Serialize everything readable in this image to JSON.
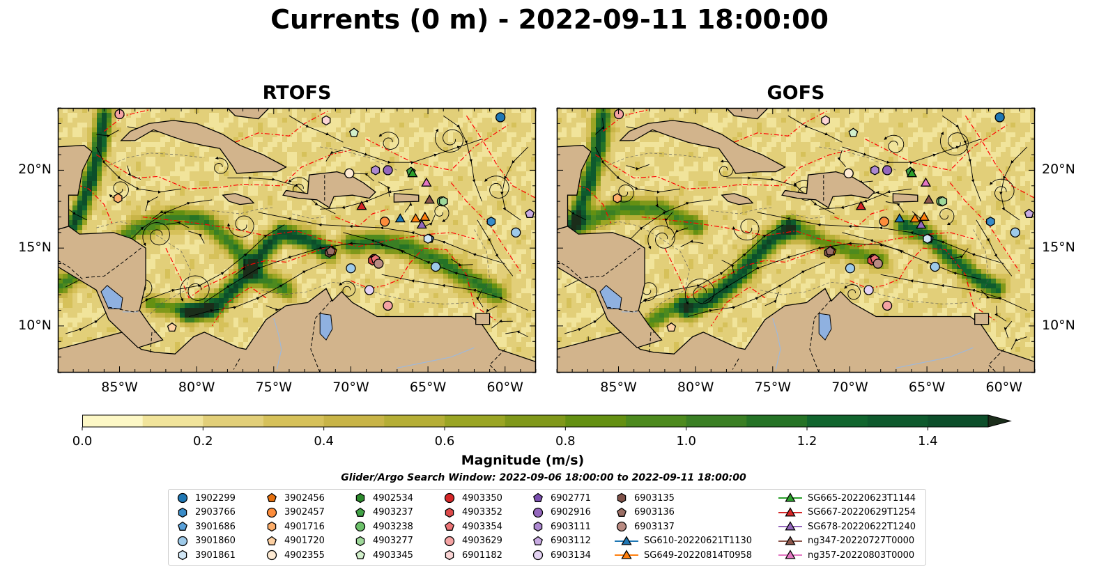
{
  "title": "Currents (0 m) - 2022-09-11 18:00:00",
  "panels": [
    {
      "id": "rtofs",
      "title": "RTOFS"
    },
    {
      "id": "gofs",
      "title": "GOFS"
    }
  ],
  "map": {
    "lon_range": [
      -89,
      -58
    ],
    "lat_range": [
      7,
      24
    ],
    "lon_ticks": [
      "85°W",
      "80°W",
      "75°W",
      "70°W",
      "65°W",
      "60°W"
    ],
    "lon_values": [
      -85,
      -80,
      -75,
      -70,
      -65,
      -60
    ],
    "lat_ticks": [
      "10°N",
      "15°N",
      "20°N"
    ],
    "lat_values": [
      10,
      15,
      20
    ]
  },
  "colorbar": {
    "label": "Magnitude (m/s)",
    "min": 0.0,
    "max": 1.5,
    "step": 0.1,
    "tick_labels": [
      "0.0",
      "0.2",
      "0.4",
      "0.6",
      "0.8",
      "1.0",
      "1.2",
      "1.4"
    ],
    "tick_values": [
      0,
      0.2,
      0.4,
      0.6,
      0.8,
      1.0,
      1.2,
      1.4
    ],
    "colors": [
      "#fdf8c6",
      "#f1e49b",
      "#e2cf79",
      "#d6c15a",
      "#c8b447",
      "#b5ae36",
      "#9aa524",
      "#80981a",
      "#649012",
      "#4d8a1e",
      "#3a7f24",
      "#257326",
      "#11652e",
      "#0e5a2d",
      "#0c4e2a",
      "#0e4325",
      "#143820",
      "#1b2d1a"
    ],
    "extend": "max"
  },
  "search_window": "Glider/Argo Search Window: 2022-09-06 18:00:00 to 2022-09-11 18:00:00",
  "legend": {
    "columns": [
      [
        {
          "label": "1902299",
          "marker": "circle",
          "color": "#1f77b4"
        },
        {
          "label": "2903766",
          "marker": "hexagon",
          "color": "#3a8cc8"
        },
        {
          "label": "3901686",
          "marker": "pentagon",
          "color": "#5aa1da"
        },
        {
          "label": "3901860",
          "marker": "circle",
          "color": "#9ecae9"
        },
        {
          "label": "3901861",
          "marker": "hexagon",
          "color": "#d0e6f5"
        }
      ],
      [
        {
          "label": "3902456",
          "marker": "pentagon",
          "color": "#e6700f"
        },
        {
          "label": "3902457",
          "marker": "circle",
          "color": "#fd8d3c"
        },
        {
          "label": "4901716",
          "marker": "hexagon",
          "color": "#fdae6b"
        },
        {
          "label": "4901720",
          "marker": "pentagon",
          "color": "#fdd0a2"
        },
        {
          "label": "4902355",
          "marker": "circle",
          "color": "#feebd4"
        }
      ],
      [
        {
          "label": "4902534",
          "marker": "hexagon",
          "color": "#2c8a2c"
        },
        {
          "label": "4903237",
          "marker": "pentagon",
          "color": "#41a346"
        },
        {
          "label": "4903238",
          "marker": "circle",
          "color": "#6cc16a"
        },
        {
          "label": "4903277",
          "marker": "hexagon",
          "color": "#9fd89a"
        },
        {
          "label": "4903345",
          "marker": "pentagon",
          "color": "#d2efcb"
        }
      ],
      [
        {
          "label": "4903350",
          "marker": "circle",
          "color": "#d62728"
        },
        {
          "label": "4903352",
          "marker": "hexagon",
          "color": "#de4a4a"
        },
        {
          "label": "4903354",
          "marker": "pentagon",
          "color": "#ec7476"
        },
        {
          "label": "4903629",
          "marker": "circle",
          "color": "#f4a3a3"
        },
        {
          "label": "6901182",
          "marker": "hexagon",
          "color": "#fbd5d5"
        }
      ],
      [
        {
          "label": "6902771",
          "marker": "pentagon",
          "color": "#7b4fb0"
        },
        {
          "label": "6902916",
          "marker": "circle",
          "color": "#9467bd"
        },
        {
          "label": "6903111",
          "marker": "hexagon",
          "color": "#ad89d1"
        },
        {
          "label": "6903112",
          "marker": "pentagon",
          "color": "#c8abe2"
        },
        {
          "label": "6903134",
          "marker": "circle",
          "color": "#e3d2f2"
        }
      ],
      [
        {
          "label": "6903135",
          "marker": "hexagon",
          "color": "#7f5249"
        },
        {
          "label": "6903136",
          "marker": "pentagon",
          "color": "#9b6e64"
        },
        {
          "label": "6903137",
          "marker": "circle",
          "color": "#b98b82"
        },
        {
          "label": "SG610-20220621T1130",
          "marker": "triangle-line",
          "color": "#1f77b4"
        },
        {
          "label": "SG649-20220814T0958",
          "marker": "triangle-line",
          "color": "#ff7f0e"
        }
      ],
      [
        {
          "label": "SG665-20220623T1144",
          "marker": "triangle-line",
          "color": "#2ca02c"
        },
        {
          "label": "SG667-20220629T1254",
          "marker": "triangle-line",
          "color": "#d62728"
        },
        {
          "label": "SG678-20220622T1240",
          "marker": "triangle-line",
          "color": "#9467bd"
        },
        {
          "label": "ng347-20220727T0000",
          "marker": "triangle-line",
          "color": "#8c564b"
        },
        {
          "label": "ng357-20220803T0000",
          "marker": "triangle-line",
          "color": "#e377c2"
        }
      ]
    ]
  },
  "markers": [
    {
      "label": "1902299",
      "lon": -60.3,
      "lat": 23.4
    },
    {
      "label": "2903766",
      "lon": -60.9,
      "lat": 16.7
    },
    {
      "label": "3901686",
      "lon": -64.9,
      "lat": 15.6
    },
    {
      "label": "3901860",
      "lon": -64.5,
      "lat": 13.8
    },
    {
      "label": "3901861",
      "lon": -65.0,
      "lat": 15.6
    },
    {
      "label": "3902456",
      "lon": -71.2,
      "lat": 14.8
    },
    {
      "label": "3902457",
      "lon": -67.8,
      "lat": 16.7
    },
    {
      "label": "4901716",
      "lon": -85.1,
      "lat": 18.2
    },
    {
      "label": "4901720",
      "lon": -81.6,
      "lat": 9.9
    },
    {
      "label": "4902355",
      "lon": -70.1,
      "lat": 19.8
    },
    {
      "label": "4902534",
      "lon": -64.0,
      "lat": 18.0
    },
    {
      "label": "4903237",
      "lon": -66.1,
      "lat": 19.9
    },
    {
      "label": "4903238",
      "lon": -64.1,
      "lat": 18.0
    },
    {
      "label": "4903277",
      "lon": -64.0,
      "lat": 18.0
    },
    {
      "label": "4903345",
      "lon": -69.8,
      "lat": 22.4
    },
    {
      "label": "4903350",
      "lon": -68.5,
      "lat": 14.3
    },
    {
      "label": "4903352",
      "lon": -68.6,
      "lat": 14.2
    },
    {
      "label": "4903354",
      "lon": -68.4,
      "lat": 14.3
    },
    {
      "label": "4903629",
      "lon": -67.6,
      "lat": 11.3
    },
    {
      "label": "6901182",
      "lon": -71.6,
      "lat": 23.2
    },
    {
      "label": "6902771",
      "lon": -58.4,
      "lat": 17.2
    },
    {
      "label": "6902916",
      "lon": -67.6,
      "lat": 20.0
    },
    {
      "label": "6903111",
      "lon": -68.4,
      "lat": 20.0
    },
    {
      "label": "6903112",
      "lon": -58.4,
      "lat": 17.2
    },
    {
      "label": "6903134",
      "lon": -68.8,
      "lat": 12.3
    },
    {
      "label": "6903135",
      "lon": -71.4,
      "lat": 14.7
    },
    {
      "label": "6903136",
      "lon": -71.3,
      "lat": 14.8
    },
    {
      "label": "6903137",
      "lon": -68.2,
      "lat": 14.0
    },
    {
      "label": "3901860",
      "lon": -59.3,
      "lat": 16.0
    },
    {
      "label": "3901860",
      "lon": -70.0,
      "lat": 13.7
    },
    {
      "label": "4903629",
      "lon": -85.0,
      "lat": 23.6
    },
    {
      "label": "SG610-20220621T1130",
      "lon": -66.8,
      "lat": 16.9
    },
    {
      "label": "SG649-20220814T0958",
      "lon": -65.8,
      "lat": 16.9
    },
    {
      "label": "SG649-20220814T0958",
      "lon": -65.2,
      "lat": 17.0
    },
    {
      "label": "SG665-20220623T1144",
      "lon": -66.0,
      "lat": 19.8
    },
    {
      "label": "SG667-20220629T1254",
      "lon": -69.3,
      "lat": 17.7
    },
    {
      "label": "SG678-20220622T1240",
      "lon": -65.4,
      "lat": 16.5
    },
    {
      "label": "ng347-20220727T0000",
      "lon": -64.9,
      "lat": 18.1
    },
    {
      "label": "ng357-20220803T0000",
      "lon": -65.1,
      "lat": 19.2
    }
  ]
}
